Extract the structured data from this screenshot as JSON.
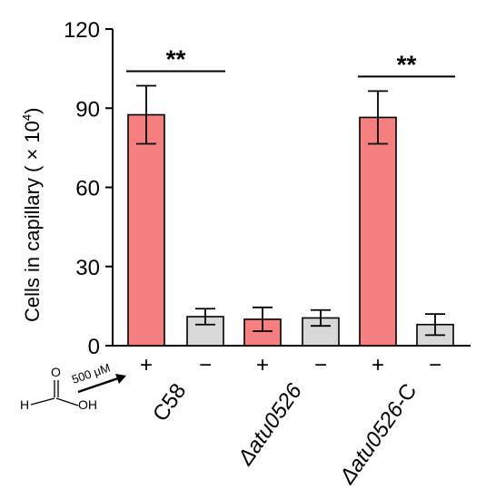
{
  "chart_data": {
    "type": "bar",
    "title": "",
    "ylabel": "Cells in capillary ( × 10",
    "ylabel_sup": "4",
    "ylabel_close": ")",
    "ylim": [
      0,
      120
    ],
    "yticks": [
      0,
      30,
      60,
      90,
      120
    ],
    "bars": [
      {
        "treatment": "+",
        "value": 87.5,
        "error": 11,
        "color": "#f67f7f"
      },
      {
        "treatment": "−",
        "value": 11,
        "error": 3,
        "color": "#d8d8d8"
      },
      {
        "treatment": "+",
        "value": 10,
        "error": 4.5,
        "color": "#f67f7f"
      },
      {
        "treatment": "−",
        "value": 10.5,
        "error": 3,
        "color": "#d8d8d8"
      },
      {
        "treatment": "+",
        "value": 86.5,
        "error": 10,
        "color": "#f67f7f"
      },
      {
        "treatment": "−",
        "value": 8,
        "error": 4,
        "color": "#d8d8d8"
      }
    ],
    "groups": [
      {
        "prefix": "",
        "name": "C58",
        "italic": false
      },
      {
        "prefix": "Δ",
        "name": "atu0526",
        "italic": true
      },
      {
        "prefix": "Δ",
        "name": "atu0526",
        "suffix": "-C",
        "italic": true
      }
    ],
    "significance": [
      {
        "label": "**",
        "from_bar": 0,
        "to_bar": 1
      },
      {
        "label": "**",
        "from_bar": 4,
        "to_bar": 5
      }
    ],
    "treatment_label": "500 μM",
    "molecule_atoms": {
      "oxygen_top": "O",
      "hydrogen": "H",
      "hydroxyl": "OH"
    }
  }
}
